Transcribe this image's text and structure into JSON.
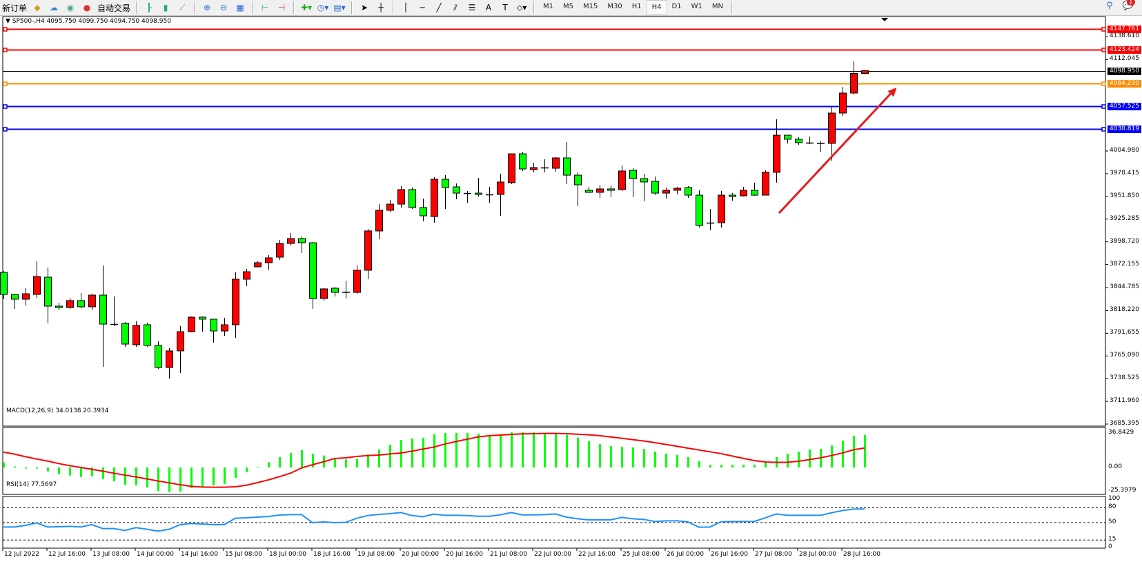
{
  "toolbar": {
    "new_order": "新订单",
    "auto_trading": "自动交易",
    "icons": [
      "new-order-icon",
      "market-watch-icon",
      "signals-icon",
      "auto-trading-icon",
      "bar-chart-icon",
      "candlestick-icon",
      "line-chart-icon",
      "zoom-in-icon",
      "zoom-out-icon",
      "tile-windows-icon",
      "auto-scroll-icon",
      "chart-shift-icon",
      "indicators-icon",
      "periods-icon",
      "templates-icon",
      "cursor-icon",
      "crosshair-icon",
      "vertical-line-icon",
      "horizontal-line-icon",
      "trendline-icon",
      "equidistant-channel-icon",
      "fibonacci-icon",
      "text-icon",
      "text-label-icon",
      "shapes-icon"
    ],
    "text_tool": "A",
    "timeframes": [
      "M1",
      "M5",
      "M15",
      "M30",
      "H1",
      "H4",
      "D1",
      "W1",
      "MN"
    ],
    "active_timeframe": "H4",
    "notification_count": "1"
  },
  "chart": {
    "header": "SP500-,H4  4095.750 4099.750 4094.750 4098.950",
    "macd_label": "MACD(12,26,9) 34.0138 20.3934",
    "rsi_label": "RSI(14) 77.5697",
    "colors": {
      "bull": "#ff0000",
      "bear": "#00ff00",
      "macd_hist": "#00ff00",
      "signal": "#ff0000",
      "rsi": "#1e90ff",
      "arrow": "#e8181e"
    }
  },
  "chart_data": {
    "type": "candlestick",
    "symbol": "SP500-",
    "timeframe": "H4",
    "ylim": [
      3685.395,
      4147.761
    ],
    "price_ticks": [
      "4138.610",
      "4112.045",
      "4004.980",
      "3978.415",
      "3951.850",
      "3925.285",
      "3898.720",
      "3872.155",
      "3844.785",
      "3818.220",
      "3791.655",
      "3765.090",
      "3738.525",
      "3711.960",
      "3685.395"
    ],
    "time_labels": [
      "12 Jul 2022",
      "12 Jul 16:00",
      "13 Jul 08:00",
      "14 Jul 00:00",
      "14 Jul 16:00",
      "15 Jul 08:00",
      "18 Jul 00:00",
      "18 Jul 16:00",
      "19 Jul 08:00",
      "20 Jul 00:00",
      "20 Jul 16:00",
      "21 Jul 08:00",
      "22 Jul 00:00",
      "22 Jul 16:00",
      "25 Jul 08:00",
      "26 Jul 00:00",
      "26 Jul 16:00",
      "27 Jul 08:00",
      "28 Jul 00:00",
      "28 Jul 16:00"
    ],
    "candles_ohlc": [
      [
        3862.9,
        3864.6,
        3831.5,
        3837.1
      ],
      [
        3837.1,
        3837.9,
        3820.2,
        3831.5
      ],
      [
        3831.5,
        3844.4,
        3824.2,
        3837.9
      ],
      [
        3837.1,
        3875.9,
        3833.1,
        3858.1
      ],
      [
        3857.3,
        3868.6,
        3803.2,
        3823.4
      ],
      [
        3823.4,
        3827.4,
        3818.6,
        3821.8
      ],
      [
        3821.8,
        3833.1,
        3820.2,
        3829.9
      ],
      [
        3829.9,
        3838.7,
        3821.0,
        3822.6
      ],
      [
        3822.6,
        3837.9,
        3818.6,
        3836.3
      ],
      [
        3836.3,
        3871.0,
        3752.4,
        3802.4
      ],
      [
        3802.4,
        3834.7,
        3800.0,
        3802.0
      ],
      [
        3803.2,
        3804.8,
        3775.8,
        3779.0
      ],
      [
        3778.2,
        3805.6,
        3775.8,
        3800.8
      ],
      [
        3801.6,
        3804.0,
        3775.8,
        3777.4
      ],
      [
        3777.4,
        3782.2,
        3750.0,
        3751.6
      ],
      [
        3751.6,
        3774.2,
        3738.7,
        3771.0
      ],
      [
        3771.0,
        3800.0,
        3745.1,
        3793.5
      ],
      [
        3793.5,
        3811.3,
        3792.7,
        3810.5
      ],
      [
        3810.5,
        3811.3,
        3793.5,
        3808.1
      ],
      [
        3808.1,
        3808.1,
        3780.6,
        3794.3
      ],
      [
        3794.3,
        3809.7,
        3788.7,
        3801.6
      ],
      [
        3801.6,
        3862.9,
        3786.3,
        3854.9
      ],
      [
        3854.9,
        3867.0,
        3846.8,
        3863.7
      ],
      [
        3869.4,
        3875.9,
        3868.6,
        3874.2
      ],
      [
        3874.2,
        3883.1,
        3865.4,
        3879.9
      ],
      [
        3880.7,
        3900.9,
        3877.5,
        3896.8
      ],
      [
        3896.8,
        3908.9,
        3894.4,
        3902.5
      ],
      [
        3902.5,
        3904.9,
        3885.5,
        3897.6
      ],
      [
        3897.6,
        3898.4,
        3820.2,
        3832.3
      ],
      [
        3832.3,
        3844.4,
        3829.9,
        3843.6
      ],
      [
        3844.4,
        3846.0,
        3834.7,
        3839.5
      ],
      [
        3840.0,
        3853.3,
        3832.3,
        3839.5
      ],
      [
        3839.5,
        3871.0,
        3837.9,
        3865.4
      ],
      [
        3865.4,
        3913.8,
        3854.9,
        3911.4
      ],
      [
        3911.4,
        3942.8,
        3901.7,
        3935.6
      ],
      [
        3935.6,
        3947.7,
        3934.0,
        3942.8
      ],
      [
        3942.8,
        3963.8,
        3938.8,
        3959.8
      ],
      [
        3959.8,
        3962.2,
        3937.2,
        3938.8
      ],
      [
        3938.8,
        3949.3,
        3922.7,
        3929.1
      ],
      [
        3928.3,
        3974.3,
        3921.0,
        3971.9
      ],
      [
        3971.9,
        3976.7,
        3937.2,
        3962.2
      ],
      [
        3963.0,
        3967.0,
        3948.5,
        3955.7
      ],
      [
        3955.7,
        3958.2,
        3944.4,
        3955.7
      ],
      [
        3955.7,
        3973.5,
        3951.7,
        3954.1
      ],
      [
        3954.1,
        3963.0,
        3944.4,
        3954.1
      ],
      [
        3954.1,
        3978.3,
        3929.1,
        3968.7
      ],
      [
        3967.9,
        4001.7,
        3966.2,
        4001.7
      ],
      [
        4001.7,
        4004.2,
        3981.6,
        3984.0
      ],
      [
        3983.2,
        3991.3,
        3980.0,
        3985.6
      ],
      [
        3985.6,
        3995.3,
        3980.0,
        3985.6
      ],
      [
        3984.8,
        3997.7,
        3980.8,
        3996.9
      ],
      [
        3996.9,
        4015.5,
        3966.2,
        3976.7
      ],
      [
        3976.7,
        3980.0,
        3940.4,
        3965.4
      ],
      [
        3959.0,
        3963.0,
        3955.7,
        3956.6
      ],
      [
        3956.6,
        3965.4,
        3950.1,
        3960.6
      ],
      [
        3960.6,
        3964.6,
        3950.9,
        3959.0
      ],
      [
        3959.8,
        3988.0,
        3958.2,
        3981.6
      ],
      [
        3982.4,
        3984.8,
        3950.9,
        3972.7
      ],
      [
        3972.7,
        3978.3,
        3946.1,
        3968.7
      ],
      [
        3969.5,
        3975.1,
        3953.3,
        3955.7
      ],
      [
        3955.7,
        3962.2,
        3949.3,
        3959.0
      ],
      [
        3959.0,
        3963.0,
        3954.1,
        3961.4
      ],
      [
        3962.2,
        3963.8,
        3950.1,
        3953.3
      ],
      [
        3953.3,
        3959.0,
        3915.4,
        3917.8
      ],
      [
        3920.0,
        3937.2,
        3912.2,
        3921.0
      ],
      [
        3921.0,
        3958.2,
        3915.4,
        3953.3
      ],
      [
        3953.3,
        3955.7,
        3946.9,
        3951.7
      ],
      [
        3952.5,
        3963.0,
        3951.7,
        3959.0
      ],
      [
        3959.0,
        3967.9,
        3952.5,
        3953.3
      ],
      [
        3953.3,
        3982.4,
        3953.3,
        3980.0
      ],
      [
        3980.0,
        4042.1,
        3967.9,
        4023.5
      ],
      [
        4023.5,
        4023.5,
        4013.9,
        4018.7
      ],
      [
        4018.7,
        4021.1,
        4012.2,
        4014.7
      ],
      [
        4014.7,
        4021.9,
        4013.0,
        4014.7
      ],
      [
        4014.3,
        4016.3,
        4004.2,
        4013.9
      ],
      [
        4013.9,
        4056.6,
        3993.7,
        4049.4
      ],
      [
        4049.4,
        4080.0,
        4046.1,
        4072.8
      ],
      [
        4072.8,
        4109.9,
        4071.2,
        4095.75
      ],
      [
        4095.75,
        4099.75,
        4094.75,
        4098.95
      ]
    ],
    "levels": [
      {
        "value": "4147.761",
        "color": "#ff0000"
      },
      {
        "value": "4123.424",
        "color": "#ff0000"
      },
      {
        "value": "4098.950",
        "color": "#000000"
      },
      {
        "value": "4084.230",
        "color": "#ff8c00"
      },
      {
        "value": "4057.525",
        "color": "#0000ff"
      },
      {
        "value": "4030.819",
        "color": "#0000ff"
      }
    ],
    "arrow": {
      "from": {
        "bar": 70.25,
        "price": 3932.3
      },
      "to": {
        "bar": 80.9,
        "price": 4079.2
      }
    },
    "macd": {
      "ylim": [
        -25.3979,
        36.8429
      ],
      "ticks": [
        "36.8429",
        "0.00",
        "-25.3979"
      ],
      "histogram": [
        5.3,
        1.2,
        -1.2,
        -1.2,
        -4.1,
        -7.2,
        -8.4,
        -9.9,
        -9.2,
        -12.0,
        -14.5,
        -18.1,
        -18.8,
        -21.0,
        -24.8,
        -25.8,
        -25.3,
        -21.7,
        -19.8,
        -18.8,
        -17.3,
        -10.8,
        -4.8,
        0.7,
        5.5,
        10.8,
        15.2,
        18.3,
        14.5,
        12.5,
        10.1,
        8.4,
        8.9,
        13.7,
        18.8,
        23.9,
        28.9,
        30.4,
        31.3,
        34.7,
        36.1,
        36.1,
        36.1,
        35.4,
        33.7,
        34.2,
        36.8,
        36.8,
        36.8,
        35.7,
        35.7,
        34.2,
        31.3,
        27.5,
        24.6,
        22.4,
        21.7,
        21.0,
        19.5,
        16.6,
        14.5,
        13.0,
        10.8,
        6.5,
        2.9,
        2.9,
        2.9,
        2.9,
        2.9,
        5.3,
        10.8,
        14.5,
        16.6,
        18.8,
        19.5,
        23.1,
        28.2,
        33.3,
        34.0138
      ],
      "signal": [
        16.1,
        14.0,
        11.3,
        8.9,
        6.7,
        4.1,
        1.9,
        0.0,
        -1.9,
        -3.9,
        -6.0,
        -8.0,
        -9.9,
        -12.0,
        -14.2,
        -16.1,
        -18.1,
        -19.8,
        -20.5,
        -20.7,
        -20.7,
        -20.2,
        -18.6,
        -15.9,
        -13.0,
        -9.6,
        -6.0,
        -0.5,
        2.9,
        6.0,
        9.4,
        10.1,
        11.6,
        12.5,
        13.0,
        14.2,
        15.2,
        17.1,
        19.3,
        21.4,
        24.6,
        27.2,
        29.6,
        32.0,
        33.3,
        34.0,
        34.7,
        35.2,
        35.4,
        35.7,
        35.7,
        35.4,
        34.9,
        34.2,
        33.3,
        32.0,
        30.6,
        29.2,
        27.7,
        26.0,
        24.1,
        22.2,
        20.2,
        18.3,
        16.4,
        14.5,
        12.0,
        9.6,
        7.2,
        5.8,
        5.3,
        5.5,
        6.5,
        8.2,
        10.1,
        12.5,
        15.2,
        18.6,
        20.3934
      ]
    },
    "rsi": {
      "ylim": [
        0,
        100
      ],
      "ticks": [
        "100",
        "80",
        "50",
        "15",
        "0"
      ],
      "levels": [
        80,
        50,
        15
      ],
      "values": [
        41.2,
        41.2,
        44.5,
        49.5,
        41.2,
        41.7,
        42.6,
        41.2,
        45.9,
        38.0,
        38.0,
        34.3,
        39.9,
        36.6,
        32.9,
        36.6,
        45.9,
        48.2,
        47.2,
        45.9,
        45.9,
        58.8,
        59.7,
        61.1,
        62.4,
        65.2,
        66.1,
        66.1,
        50.0,
        51.4,
        50.0,
        50.5,
        58.8,
        64.3,
        66.6,
        68.0,
        70.3,
        64.3,
        62.0,
        67.1,
        64.7,
        64.7,
        64.3,
        62.9,
        62.9,
        65.7,
        70.3,
        65.7,
        65.7,
        66.1,
        67.5,
        61.1,
        57.8,
        55.5,
        55.5,
        55.5,
        60.6,
        57.8,
        56.5,
        52.3,
        53.7,
        53.7,
        51.4,
        40.8,
        41.2,
        51.8,
        52.3,
        52.3,
        52.3,
        59.7,
        67.5,
        64.7,
        64.7,
        64.7,
        64.7,
        69.8,
        74.4,
        77.2,
        77.5697
      ]
    }
  }
}
